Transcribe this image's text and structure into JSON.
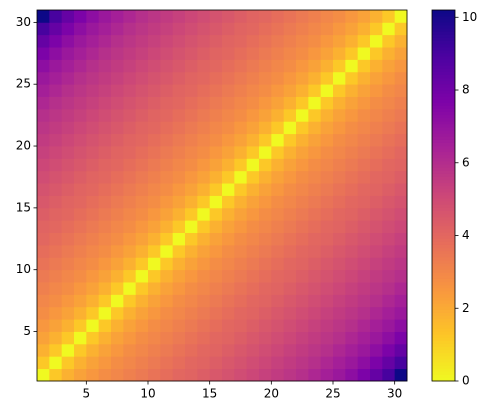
{
  "chart_data": {
    "type": "heatmap",
    "colormap": "plasma_r",
    "xlim": [
      1,
      31
    ],
    "ylim": [
      1,
      31
    ],
    "xticks": [
      5,
      10,
      15,
      20,
      25,
      30
    ],
    "yticks": [
      5,
      10,
      15,
      20,
      25,
      30
    ],
    "clim": [
      0,
      10.2
    ],
    "cticks": [
      0,
      2,
      4,
      6,
      8,
      10
    ],
    "z": [
      [
        0,
        1.2,
        1.8,
        2.2,
        2.5,
        2.8,
        3,
        3.2,
        3.4,
        3.6,
        3.8,
        4,
        4.1,
        4.3,
        4.5,
        4.7,
        4.9,
        5.1,
        5.3,
        5.5,
        5.7,
        5.9,
        6.2,
        6.5,
        6.8,
        7.2,
        7.7,
        8.3,
        9,
        10.2
      ],
      [
        1.2,
        0,
        1.2,
        1.8,
        2.2,
        2.5,
        2.8,
        3,
        3.2,
        3.4,
        3.6,
        3.8,
        4,
        4.1,
        4.3,
        4.5,
        4.7,
        4.9,
        5.1,
        5.3,
        5.5,
        5.7,
        5.9,
        6.2,
        6.5,
        6.8,
        7.2,
        7.7,
        8.3,
        9
      ],
      [
        1.8,
        1.2,
        0,
        1.2,
        1.8,
        2.2,
        2.5,
        2.8,
        3,
        3.2,
        3.4,
        3.6,
        3.8,
        4,
        4.1,
        4.3,
        4.5,
        4.7,
        4.9,
        5.1,
        5.3,
        5.5,
        5.7,
        5.9,
        6.2,
        6.5,
        6.8,
        7.2,
        7.7,
        8.3
      ],
      [
        2.2,
        1.8,
        1.2,
        0,
        1.2,
        1.8,
        2.2,
        2.5,
        2.8,
        3,
        3.2,
        3.4,
        3.6,
        3.8,
        4,
        4.1,
        4.3,
        4.5,
        4.7,
        4.9,
        5.1,
        5.3,
        5.5,
        5.7,
        5.9,
        6.2,
        6.5,
        6.8,
        7.2,
        7.7
      ],
      [
        2.5,
        2.2,
        1.8,
        1.2,
        0,
        1.2,
        1.8,
        2.2,
        2.5,
        2.8,
        3,
        3.2,
        3.4,
        3.6,
        3.8,
        4,
        4.1,
        4.3,
        4.5,
        4.7,
        4.9,
        5.1,
        5.3,
        5.5,
        5.7,
        5.9,
        6.2,
        6.5,
        6.8,
        7.2
      ],
      [
        2.8,
        2.5,
        2.2,
        1.8,
        1.2,
        0,
        1.2,
        1.8,
        2.2,
        2.5,
        2.8,
        3,
        3.2,
        3.4,
        3.6,
        3.8,
        4,
        4.1,
        4.3,
        4.5,
        4.7,
        4.9,
        5.1,
        5.3,
        5.5,
        5.7,
        5.9,
        6.2,
        6.5,
        6.8
      ],
      [
        3,
        2.8,
        2.5,
        2.2,
        1.8,
        1.2,
        0,
        1.2,
        1.8,
        2.2,
        2.5,
        2.8,
        3,
        3.2,
        3.4,
        3.6,
        3.8,
        4,
        4.1,
        4.3,
        4.5,
        4.7,
        4.9,
        5.1,
        5.3,
        5.5,
        5.7,
        5.9,
        6.2,
        6.5
      ],
      [
        3.2,
        3,
        2.8,
        2.5,
        2.2,
        1.8,
        1.2,
        0,
        1.2,
        1.8,
        2.2,
        2.5,
        2.8,
        3,
        3.2,
        3.4,
        3.6,
        3.8,
        4,
        4.1,
        4.3,
        4.5,
        4.7,
        4.9,
        5.1,
        5.3,
        5.5,
        5.7,
        5.9,
        6.2
      ],
      [
        3.4,
        3.2,
        3,
        2.8,
        2.5,
        2.2,
        1.8,
        1.2,
        0,
        1.2,
        1.8,
        2.2,
        2.5,
        2.8,
        3,
        3.2,
        3.4,
        3.6,
        3.8,
        4,
        4.1,
        4.3,
        4.5,
        4.7,
        4.9,
        5.1,
        5.3,
        5.5,
        5.7,
        5.9
      ],
      [
        3.6,
        3.4,
        3.2,
        3,
        2.8,
        2.5,
        2.2,
        1.8,
        1.2,
        0,
        1.2,
        1.8,
        2.2,
        2.5,
        2.8,
        3,
        3.2,
        3.4,
        3.6,
        3.8,
        4,
        4.1,
        4.3,
        4.5,
        4.7,
        4.9,
        5.1,
        5.3,
        5.5,
        5.7
      ],
      [
        3.8,
        3.6,
        3.4,
        3.2,
        3,
        2.8,
        2.5,
        2.2,
        1.8,
        1.2,
        0,
        1.2,
        1.8,
        2.2,
        2.5,
        2.8,
        3,
        3.2,
        3.4,
        3.6,
        3.8,
        4,
        4.1,
        4.3,
        4.5,
        4.7,
        4.9,
        5.1,
        5.3,
        5.5
      ],
      [
        4,
        3.8,
        3.6,
        3.4,
        3.2,
        3,
        2.8,
        2.5,
        2.2,
        1.8,
        1.2,
        0,
        1.2,
        1.8,
        2.2,
        2.5,
        2.8,
        3,
        3.2,
        3.4,
        3.6,
        3.8,
        4,
        4.1,
        4.3,
        4.5,
        4.7,
        4.9,
        5.1,
        5.3
      ],
      [
        4.1,
        4,
        3.8,
        3.6,
        3.4,
        3.2,
        3,
        2.8,
        2.5,
        2.2,
        1.8,
        1.2,
        0,
        1.2,
        1.8,
        2.2,
        2.5,
        2.8,
        3,
        3.2,
        3.4,
        3.6,
        3.8,
        4,
        4.1,
        4.3,
        4.5,
        4.7,
        4.9,
        5.1
      ],
      [
        4.3,
        4.1,
        4,
        3.8,
        3.6,
        3.4,
        3.2,
        3,
        2.8,
        2.5,
        2.2,
        1.8,
        1.2,
        0,
        1.2,
        1.8,
        2.2,
        2.5,
        2.8,
        3,
        3.2,
        3.4,
        3.6,
        3.8,
        4,
        4.1,
        4.3,
        4.5,
        4.7,
        4.9
      ],
      [
        4.5,
        4.3,
        4.1,
        4,
        3.8,
        3.6,
        3.4,
        3.2,
        3,
        2.8,
        2.5,
        2.2,
        1.8,
        1.2,
        0,
        1.2,
        1.8,
        2.2,
        2.5,
        2.8,
        3,
        3.2,
        3.4,
        3.6,
        3.8,
        4,
        4.1,
        4.3,
        4.5,
        4.7
      ],
      [
        4.7,
        4.5,
        4.3,
        4.1,
        4,
        3.8,
        3.6,
        3.4,
        3.2,
        3,
        2.8,
        2.5,
        2.2,
        1.8,
        1.2,
        0,
        1.2,
        1.8,
        2.2,
        2.5,
        2.8,
        3,
        3.2,
        3.4,
        3.6,
        3.8,
        4,
        4.1,
        4.3,
        4.5
      ],
      [
        4.9,
        4.7,
        4.5,
        4.3,
        4.1,
        4,
        3.8,
        3.6,
        3.4,
        3.2,
        3,
        2.8,
        2.5,
        2.2,
        1.8,
        1.2,
        0,
        1.2,
        1.8,
        2.2,
        2.5,
        2.8,
        3,
        3.2,
        3.4,
        3.6,
        3.8,
        4,
        4.1,
        4.3
      ],
      [
        5.1,
        4.9,
        4.7,
        4.5,
        4.3,
        4.1,
        4,
        3.8,
        3.6,
        3.4,
        3.2,
        3,
        2.8,
        2.5,
        2.2,
        1.8,
        1.2,
        0,
        1.2,
        1.8,
        2.2,
        2.5,
        2.8,
        3,
        3.2,
        3.4,
        3.6,
        3.8,
        4,
        4.1
      ],
      [
        5.3,
        5.1,
        4.9,
        4.7,
        4.5,
        4.3,
        4.1,
        4,
        3.8,
        3.6,
        3.4,
        3.2,
        3,
        2.8,
        2.5,
        2.2,
        1.8,
        1.2,
        0,
        1.2,
        1.8,
        2.2,
        2.5,
        2.8,
        3,
        3.2,
        3.4,
        3.6,
        3.8,
        4
      ],
      [
        5.5,
        5.3,
        5.1,
        4.9,
        4.7,
        4.5,
        4.3,
        4.1,
        4,
        3.8,
        3.6,
        3.4,
        3.2,
        3,
        2.8,
        2.5,
        2.2,
        1.8,
        1.2,
        0,
        1.2,
        1.8,
        2.2,
        2.5,
        2.8,
        3,
        3.2,
        3.4,
        3.6,
        3.8
      ],
      [
        5.7,
        5.5,
        5.3,
        5.1,
        4.9,
        4.7,
        4.5,
        4.3,
        4.1,
        4,
        3.8,
        3.6,
        3.4,
        3.2,
        3,
        2.8,
        2.5,
        2.2,
        1.8,
        1.2,
        0,
        1.2,
        1.8,
        2.2,
        2.5,
        2.8,
        3,
        3.2,
        3.4,
        3.6
      ],
      [
        5.9,
        5.7,
        5.5,
        5.3,
        5.1,
        4.9,
        4.7,
        4.5,
        4.3,
        4.1,
        4,
        3.8,
        3.6,
        3.4,
        3.2,
        3,
        2.8,
        2.5,
        2.2,
        1.8,
        1.2,
        0,
        1.2,
        1.8,
        2.2,
        2.5,
        2.8,
        3,
        3.2,
        3.4
      ],
      [
        6.2,
        5.9,
        5.7,
        5.5,
        5.3,
        5.1,
        4.9,
        4.7,
        4.5,
        4.3,
        4.1,
        4,
        3.8,
        3.6,
        3.4,
        3.2,
        3,
        2.8,
        2.5,
        2.2,
        1.8,
        1.2,
        0,
        1.2,
        1.8,
        2.2,
        2.5,
        2.8,
        3,
        3.2
      ],
      [
        6.5,
        6.2,
        5.9,
        5.7,
        5.5,
        5.3,
        5.1,
        4.9,
        4.7,
        4.5,
        4.3,
        4.1,
        4,
        3.8,
        3.6,
        3.4,
        3.2,
        3,
        2.8,
        2.5,
        2.2,
        1.8,
        1.2,
        0,
        1.2,
        1.8,
        2.2,
        2.5,
        2.8,
        3
      ],
      [
        6.8,
        6.5,
        6.2,
        5.9,
        5.7,
        5.5,
        5.3,
        5.1,
        4.9,
        4.7,
        4.5,
        4.3,
        4.1,
        4,
        3.8,
        3.6,
        3.4,
        3.2,
        3,
        2.8,
        2.5,
        2.2,
        1.8,
        1.2,
        0,
        1.2,
        1.8,
        2.2,
        2.5,
        2.8
      ],
      [
        7.2,
        6.8,
        6.5,
        6.2,
        5.9,
        5.7,
        5.5,
        5.3,
        5.1,
        4.9,
        4.7,
        4.5,
        4.3,
        4.1,
        4,
        3.8,
        3.6,
        3.4,
        3.2,
        3,
        2.8,
        2.5,
        2.2,
        1.8,
        1.2,
        0,
        1.2,
        1.8,
        2.2,
        2.5
      ],
      [
        7.7,
        7.2,
        6.8,
        6.5,
        6.2,
        5.9,
        5.7,
        5.5,
        5.3,
        5.1,
        4.9,
        4.7,
        4.5,
        4.3,
        4.1,
        4,
        3.8,
        3.6,
        3.4,
        3.2,
        3,
        2.8,
        2.5,
        2.2,
        1.8,
        1.2,
        0,
        1.2,
        1.8,
        2.2
      ],
      [
        8.3,
        7.7,
        7.2,
        6.8,
        6.5,
        6.2,
        5.9,
        5.7,
        5.5,
        5.3,
        5.1,
        4.9,
        4.7,
        4.5,
        4.3,
        4.1,
        4,
        3.8,
        3.6,
        3.4,
        3.2,
        3,
        2.8,
        2.5,
        2.2,
        1.8,
        1.2,
        0,
        1.2,
        1.8
      ],
      [
        9,
        8.3,
        7.7,
        7.2,
        6.8,
        6.5,
        6.2,
        5.9,
        5.7,
        5.5,
        5.3,
        5.1,
        4.9,
        4.7,
        4.5,
        4.3,
        4.1,
        4,
        3.8,
        3.6,
        3.4,
        3.2,
        3,
        2.8,
        2.5,
        2.2,
        1.8,
        1.2,
        0,
        1.2
      ],
      [
        10.2,
        9,
        8.3,
        7.7,
        7.2,
        6.8,
        6.5,
        6.2,
        5.9,
        5.7,
        5.5,
        5.3,
        5.1,
        4.9,
        4.7,
        4.5,
        4.3,
        4.1,
        4,
        3.8,
        3.6,
        3.4,
        3.2,
        3,
        2.8,
        2.5,
        2.2,
        1.8,
        1.2,
        0
      ]
    ]
  }
}
